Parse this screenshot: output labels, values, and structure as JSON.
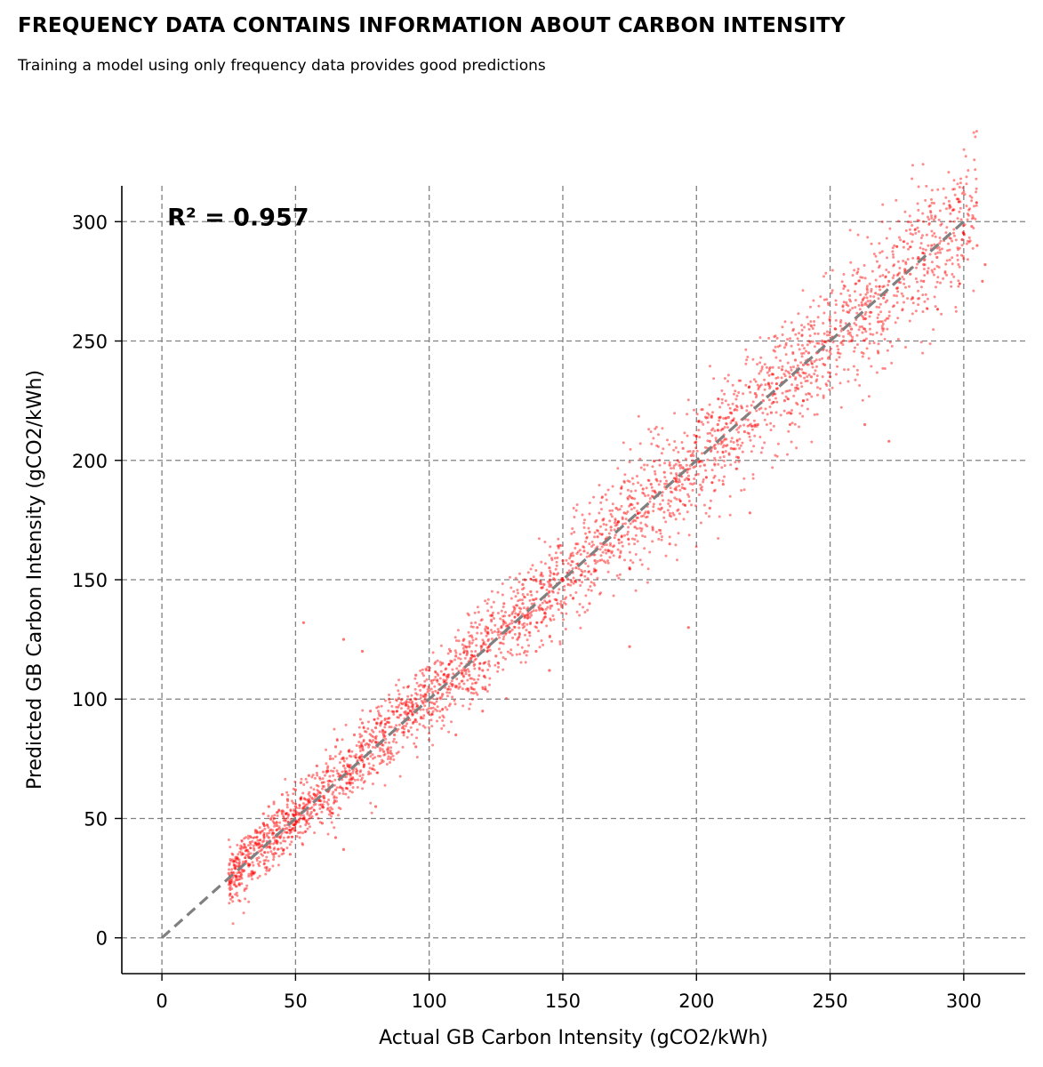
{
  "chart_data": {
    "type": "scatter",
    "title": "FREQUENCY DATA CONTAINS INFORMATION ABOUT CARBON INTENSITY",
    "subtitle": "Training a model using only frequency data provides good predictions",
    "xlabel": "Actual GB Carbon Intensity (gCO2/kWh)",
    "ylabel": "Predicted GB Carbon Intensity (gCO2/kWh)",
    "xlim": [
      -15,
      323
    ],
    "ylim": [
      -15,
      315
    ],
    "xticks": [
      0,
      50,
      100,
      150,
      200,
      250,
      300
    ],
    "yticks": [
      0,
      50,
      100,
      150,
      200,
      250,
      300
    ],
    "grid": true,
    "annotation": "R² = 0.957",
    "reference_line": {
      "x": [
        0,
        300
      ],
      "y": [
        0,
        300
      ],
      "style": "dashed",
      "color": "#808080"
    },
    "point_color": "#ff0000",
    "series": [
      {
        "values": [
          [
            25,
            27
          ],
          [
            28,
            33
          ],
          [
            30,
            38
          ],
          [
            33,
            40
          ],
          [
            35,
            45
          ],
          [
            38,
            48
          ],
          [
            40,
            42
          ],
          [
            40,
            55
          ],
          [
            42,
            50
          ],
          [
            43,
            47
          ],
          [
            45,
            52
          ],
          [
            45,
            60
          ],
          [
            47,
            58
          ],
          [
            48,
            45
          ],
          [
            50,
            55
          ],
          [
            50,
            62
          ],
          [
            52,
            65
          ],
          [
            53,
            50
          ],
          [
            55,
            58
          ],
          [
            55,
            68
          ],
          [
            57,
            60
          ],
          [
            58,
            72
          ],
          [
            60,
            55
          ],
          [
            60,
            65
          ],
          [
            62,
            70
          ],
          [
            63,
            75
          ],
          [
            65,
            62
          ],
          [
            65,
            80
          ],
          [
            67,
            68
          ],
          [
            68,
            72
          ],
          [
            70,
            78
          ],
          [
            70,
            65
          ],
          [
            72,
            85
          ],
          [
            73,
            70
          ],
          [
            75,
            80
          ],
          [
            75,
            90
          ],
          [
            77,
            75
          ],
          [
            78,
            95
          ],
          [
            80,
            82
          ],
          [
            80,
            88
          ],
          [
            82,
            90
          ],
          [
            83,
            78
          ],
          [
            85,
            92
          ],
          [
            85,
            100
          ],
          [
            87,
            85
          ],
          [
            88,
            95
          ],
          [
            90,
            98
          ],
          [
            90,
            88
          ],
          [
            92,
            105
          ],
          [
            93,
            95
          ],
          [
            95,
            100
          ],
          [
            95,
            110
          ],
          [
            97,
            92
          ],
          [
            98,
            105
          ],
          [
            100,
            100
          ],
          [
            100,
            112
          ],
          [
            102,
            98
          ],
          [
            103,
            108
          ],
          [
            105,
            115
          ],
          [
            105,
            102
          ],
          [
            107,
            110
          ],
          [
            108,
            120
          ],
          [
            110,
            105
          ],
          [
            110,
            118
          ],
          [
            112,
            115
          ],
          [
            113,
            125
          ],
          [
            115,
            110
          ],
          [
            115,
            122
          ],
          [
            117,
            118
          ],
          [
            118,
            130
          ],
          [
            120,
            120
          ],
          [
            120,
            112
          ],
          [
            122,
            128
          ],
          [
            123,
            135
          ],
          [
            125,
            125
          ],
          [
            125,
            118
          ],
          [
            127,
            130
          ],
          [
            128,
            140
          ],
          [
            130,
            128
          ],
          [
            130,
            135
          ],
          [
            132,
            138
          ],
          [
            133,
            125
          ],
          [
            135,
            140
          ],
          [
            135,
            148
          ],
          [
            137,
            135
          ],
          [
            138,
            145
          ],
          [
            140,
            142
          ],
          [
            140,
            150
          ],
          [
            142,
            138
          ],
          [
            143,
            148
          ],
          [
            145,
            145
          ],
          [
            145,
            155
          ],
          [
            147,
            150
          ],
          [
            148,
            140
          ],
          [
            150,
            150
          ],
          [
            150,
            158
          ],
          [
            152,
            148
          ],
          [
            153,
            160
          ],
          [
            155,
            155
          ],
          [
            155,
            165
          ],
          [
            157,
            152
          ],
          [
            158,
            162
          ],
          [
            160,
            160
          ],
          [
            160,
            170
          ],
          [
            162,
            158
          ],
          [
            163,
            168
          ],
          [
            165,
            165
          ],
          [
            165,
            175
          ],
          [
            167,
            162
          ],
          [
            168,
            172
          ],
          [
            170,
            170
          ],
          [
            170,
            180
          ],
          [
            172,
            168
          ],
          [
            173,
            178
          ],
          [
            175,
            175
          ],
          [
            175,
            185
          ],
          [
            177,
            172
          ],
          [
            178,
            182
          ],
          [
            180,
            180
          ],
          [
            180,
            188
          ],
          [
            182,
            178
          ],
          [
            183,
            190
          ],
          [
            185,
            185
          ],
          [
            185,
            192
          ],
          [
            187,
            180
          ],
          [
            188,
            195
          ],
          [
            190,
            190
          ],
          [
            190,
            198
          ],
          [
            192,
            188
          ],
          [
            193,
            200
          ],
          [
            195,
            195
          ],
          [
            195,
            205
          ],
          [
            197,
            192
          ],
          [
            198,
            202
          ],
          [
            200,
            200
          ],
          [
            200,
            210
          ],
          [
            203,
            198
          ],
          [
            205,
            208
          ],
          [
            207,
            205
          ],
          [
            208,
            215
          ],
          [
            210,
            210
          ],
          [
            212,
            218
          ],
          [
            213,
            205
          ],
          [
            215,
            215
          ],
          [
            217,
            222
          ],
          [
            218,
            212
          ],
          [
            220,
            220
          ],
          [
            222,
            228
          ],
          [
            223,
            215
          ],
          [
            225,
            225
          ],
          [
            227,
            232
          ],
          [
            228,
            220
          ],
          [
            230,
            230
          ],
          [
            232,
            238
          ],
          [
            233,
            225
          ],
          [
            235,
            235
          ],
          [
            237,
            242
          ],
          [
            238,
            230
          ],
          [
            240,
            240
          ],
          [
            242,
            245
          ],
          [
            243,
            235
          ],
          [
            245,
            245
          ],
          [
            247,
            250
          ],
          [
            248,
            240
          ],
          [
            250,
            250
          ],
          [
            252,
            255
          ],
          [
            253,
            245
          ],
          [
            255,
            255
          ],
          [
            257,
            262
          ],
          [
            258,
            250
          ],
          [
            260,
            260
          ],
          [
            262,
            265
          ],
          [
            263,
            255
          ],
          [
            265,
            262
          ],
          [
            267,
            270
          ],
          [
            268,
            258
          ],
          [
            270,
            268
          ],
          [
            272,
            275
          ],
          [
            275,
            272
          ],
          [
            278,
            280
          ],
          [
            280,
            278
          ],
          [
            283,
            285
          ],
          [
            285,
            282
          ],
          [
            288,
            290
          ],
          [
            290,
            285
          ],
          [
            300,
            295
          ],
          [
            303,
            298
          ],
          [
            305,
            290
          ],
          [
            307,
            275
          ],
          [
            308,
            282
          ],
          [
            68,
            125
          ],
          [
            53,
            132
          ],
          [
            75,
            120
          ],
          [
            175,
            122
          ],
          [
            197,
            130
          ],
          [
            220,
            178
          ],
          [
            258,
            255
          ],
          [
            268,
            245
          ],
          [
            263,
            215
          ],
          [
            272,
            208
          ],
          [
            68,
            37
          ],
          [
            65,
            42
          ],
          [
            80,
            55
          ],
          [
            110,
            85
          ],
          [
            145,
            112
          ],
          [
            160,
            140
          ],
          [
            190,
            165
          ],
          [
            205,
            180
          ],
          [
            235,
            215
          ],
          [
            250,
            235
          ],
          [
            48,
            35
          ],
          [
            38,
            52
          ],
          [
            60,
            48
          ],
          [
            95,
            80
          ],
          [
            120,
            95
          ],
          [
            140,
            120
          ],
          [
            175,
            155
          ],
          [
            210,
            190
          ],
          [
            240,
            225
          ],
          [
            285,
            275
          ]
        ]
      }
    ]
  }
}
